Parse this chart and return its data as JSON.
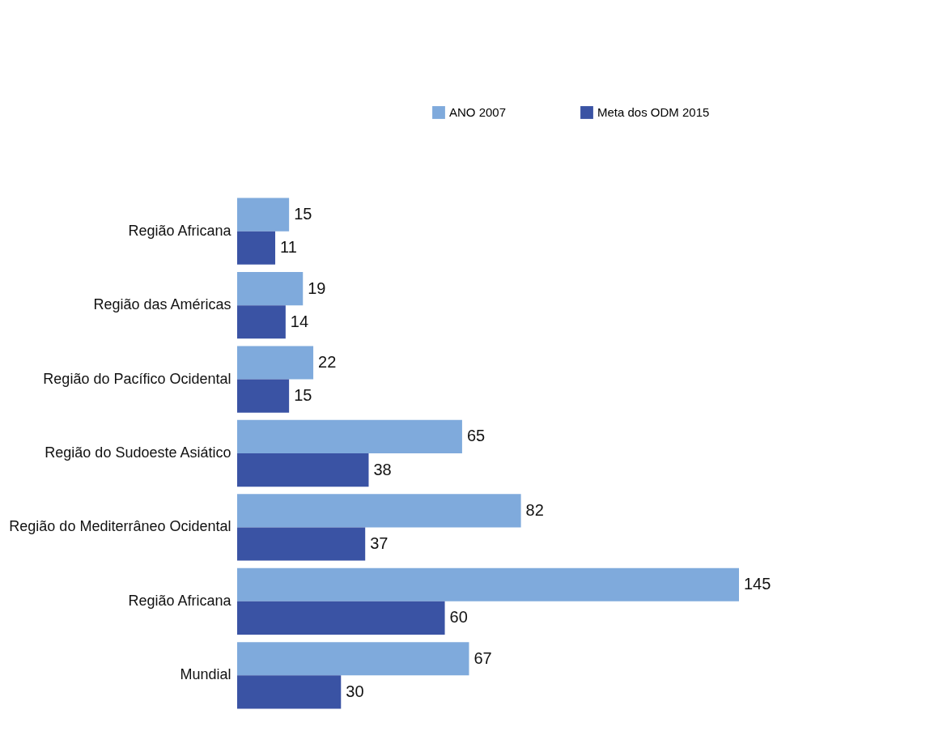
{
  "chart_data": {
    "type": "bar",
    "orientation": "horizontal",
    "categories": [
      "Região Africana",
      "Região das Américas",
      "Região do Pacífico Ocidental",
      "Região do Sudoeste Asiático",
      "Região do Mediterrâneo Ocidental",
      "Região Africana",
      "Mundial"
    ],
    "series": [
      {
        "name": "ANO 2007",
        "color": "#7faadc",
        "values": [
          15,
          19,
          22,
          65,
          82,
          145,
          67
        ]
      },
      {
        "name": "Meta dos ODM 2015",
        "color": "#3a53a4",
        "values": [
          11,
          14,
          15,
          38,
          37,
          60,
          30
        ]
      }
    ],
    "data_labels": true,
    "legend": "top right"
  }
}
